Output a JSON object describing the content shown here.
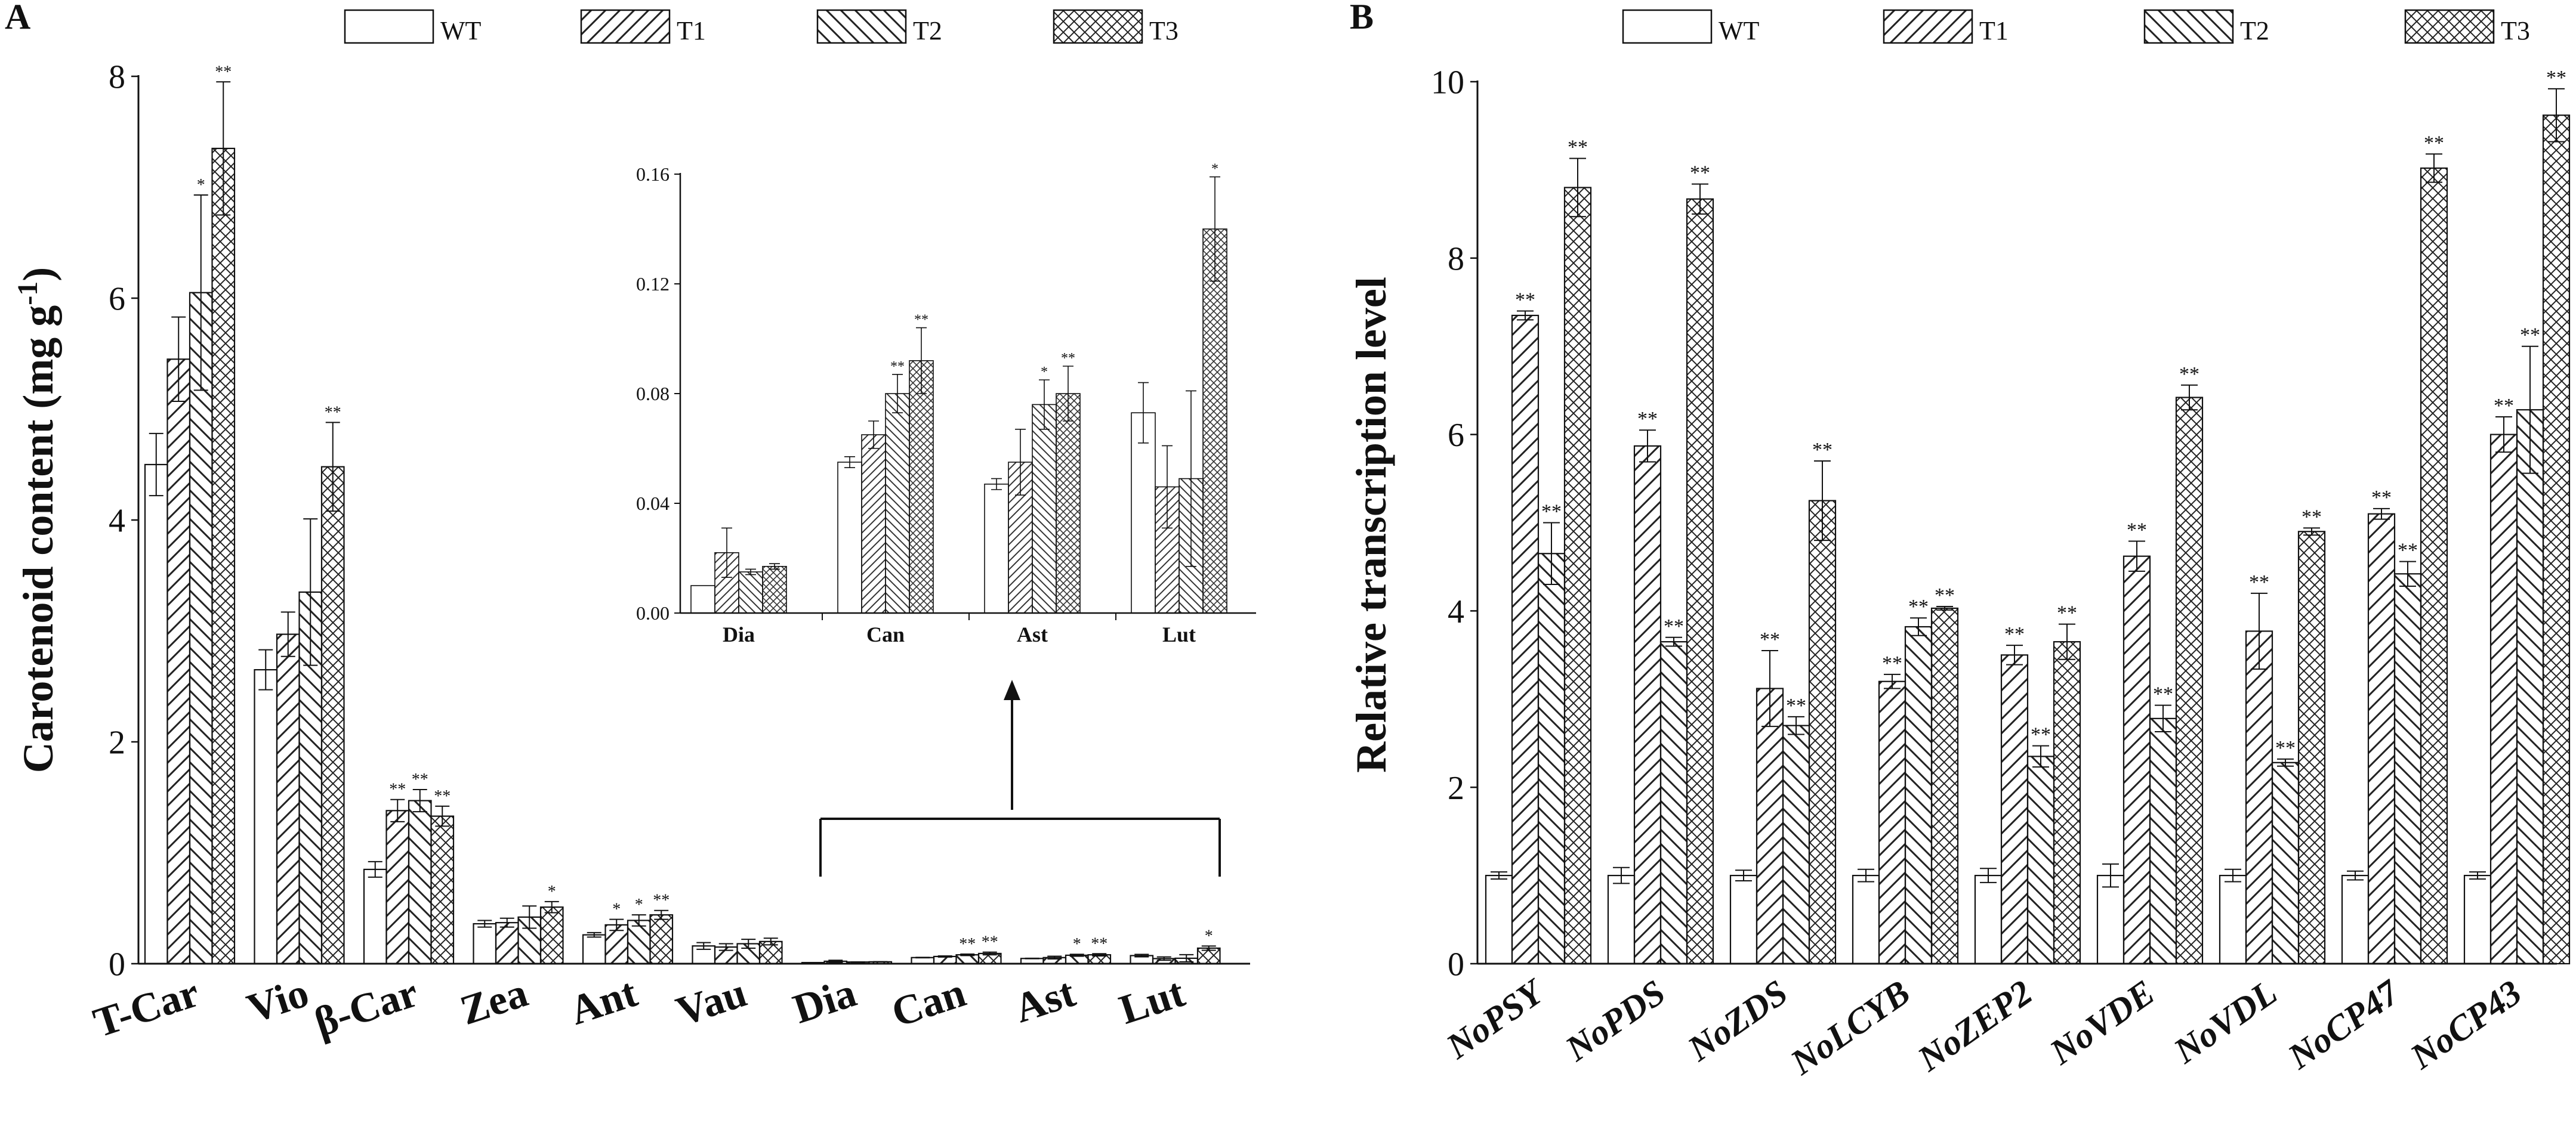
{
  "chart_data": [
    {
      "panel": "A",
      "type": "bar",
      "title": "",
      "ylabel": "Carotenoid content (mg g",
      "ylabel_sup": "-1",
      "ylabel_close": ")",
      "xlabel": "",
      "ylim": [
        0,
        8
      ],
      "yticks": [
        "0",
        "2",
        "4",
        "6",
        "8"
      ],
      "grid": false,
      "legend": "top",
      "categories": [
        "T-Car",
        "Vio",
        "β-Car",
        "Zea",
        "Ant",
        "Vau",
        "Dia",
        "Can",
        "Ast",
        "Lut"
      ],
      "series": [
        {
          "name": "WT",
          "pattern": "none",
          "values": [
            4.5,
            2.65,
            0.85,
            0.36,
            0.26,
            0.16,
            0.01,
            0.055,
            0.047,
            0.073
          ],
          "errors": [
            0.28,
            0.18,
            0.07,
            0.03,
            0.02,
            0.03,
            0.0,
            0.002,
            0.002,
            0.011
          ],
          "sig": [
            "",
            "",
            "",
            "",
            "",
            "",
            "",
            "",
            "",
            ""
          ]
        },
        {
          "name": "T1",
          "pattern": "diag-right",
          "values": [
            5.45,
            2.97,
            1.38,
            0.37,
            0.35,
            0.15,
            0.022,
            0.065,
            0.055,
            0.046
          ],
          "errors": [
            0.38,
            0.2,
            0.1,
            0.04,
            0.05,
            0.03,
            0.009,
            0.005,
            0.012,
            0.015
          ],
          "sig": [
            "",
            "",
            "**",
            "",
            "*",
            "",
            "",
            "",
            "",
            ""
          ]
        },
        {
          "name": "T2",
          "pattern": "diag-left",
          "values": [
            6.05,
            3.35,
            1.47,
            0.42,
            0.39,
            0.18,
            0.015,
            0.08,
            0.076,
            0.049
          ],
          "errors": [
            0.88,
            0.66,
            0.1,
            0.1,
            0.05,
            0.04,
            0.001,
            0.007,
            0.009,
            0.032
          ],
          "sig": [
            "*",
            "",
            "**",
            "",
            "*",
            "",
            "",
            "**",
            "*",
            ""
          ]
        },
        {
          "name": "T3",
          "pattern": "cross",
          "values": [
            7.35,
            4.48,
            1.33,
            0.51,
            0.44,
            0.2,
            0.017,
            0.092,
            0.08,
            0.14
          ],
          "errors": [
            0.6,
            0.4,
            0.09,
            0.05,
            0.04,
            0.03,
            0.001,
            0.012,
            0.01,
            0.019
          ],
          "sig": [
            "**",
            "**",
            "**",
            "*",
            "**",
            "",
            "",
            "**",
            "**",
            "*"
          ]
        }
      ],
      "inset": {
        "categories": [
          "Dia",
          "Can",
          "Ast",
          "Lut"
        ],
        "ylim": [
          0,
          0.16
        ],
        "yticks": [
          "0.00",
          "0.04",
          "0.08",
          "0.12",
          "0.16"
        ]
      }
    },
    {
      "panel": "B",
      "type": "bar",
      "title": "",
      "ylabel": "Relative transcription level",
      "xlabel": "",
      "ylim": [
        0,
        10
      ],
      "yticks": [
        "0",
        "2",
        "4",
        "6",
        "8",
        "10"
      ],
      "grid": false,
      "legend": "top",
      "categories": [
        "NoPSY",
        "NoPDS",
        "NoZDS",
        "NoLCYB",
        "NoZEP2",
        "NoVDE",
        "NoVDL",
        "NoCP47",
        "NoCP43"
      ],
      "series": [
        {
          "name": "WT",
          "pattern": "none",
          "values": [
            1,
            1,
            1,
            1,
            1,
            1,
            1,
            1,
            1
          ],
          "errors": [
            0.04,
            0.09,
            0.06,
            0.07,
            0.08,
            0.13,
            0.07,
            0.05,
            0.04
          ],
          "sig": [
            "",
            "",
            "",
            "",
            "",
            "",
            "",
            "",
            ""
          ]
        },
        {
          "name": "T1",
          "pattern": "diag-right",
          "values": [
            7.35,
            5.87,
            3.12,
            3.2,
            3.5,
            4.62,
            3.77,
            5.1,
            6.0
          ],
          "errors": [
            0.05,
            0.18,
            0.43,
            0.08,
            0.11,
            0.17,
            0.43,
            0.06,
            0.2
          ],
          "sig": [
            "**",
            "**",
            "**",
            "**",
            "**",
            "**",
            "**",
            "**",
            "**"
          ]
        },
        {
          "name": "T2",
          "pattern": "diag-left",
          "values": [
            4.65,
            3.65,
            2.7,
            3.82,
            2.35,
            2.78,
            2.28,
            4.42,
            6.28
          ],
          "errors": [
            0.35,
            0.05,
            0.1,
            0.1,
            0.12,
            0.15,
            0.04,
            0.14,
            0.72
          ],
          "sig": [
            "**",
            "**",
            "**",
            "**",
            "**",
            "**",
            "**",
            "**",
            "**"
          ]
        },
        {
          "name": "T3",
          "pattern": "cross",
          "values": [
            8.8,
            8.67,
            5.25,
            4.03,
            3.65,
            6.42,
            4.9,
            9.02,
            9.62
          ],
          "errors": [
            0.33,
            0.17,
            0.45,
            0.02,
            0.2,
            0.14,
            0.04,
            0.16,
            0.3
          ],
          "sig": [
            "**",
            "**",
            "**",
            "**",
            "**",
            "**",
            "**",
            "**",
            "**"
          ]
        }
      ]
    }
  ]
}
